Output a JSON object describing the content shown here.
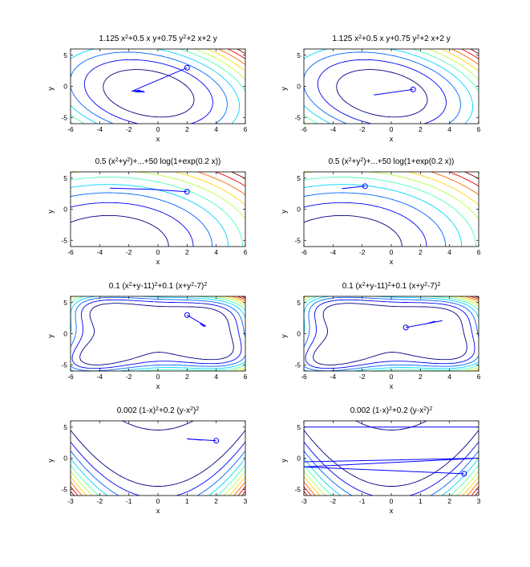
{
  "figure": {
    "background": "#ffffff"
  },
  "chart_data": [
    {
      "type": "contour",
      "function": "quad",
      "title_html": "1.125 x<tspan baseline-shift=\"super\" font-size=\"7\">2</tspan>+0.5 x y+0.75 y<tspan baseline-shift=\"super\" font-size=\"7\">2</tspan>+2 x+2 y",
      "xlabel": "x",
      "ylabel": "y",
      "xlim": [
        -6,
        6
      ],
      "ylim": [
        -6,
        6
      ],
      "xticks": [
        -6,
        -4,
        -2,
        0,
        2,
        4,
        6
      ],
      "yticks": [
        -5,
        0,
        5
      ],
      "path": [
        [
          2,
          3
        ],
        [
          -1.8,
          -0.8
        ],
        [
          -1.2,
          -0.6
        ],
        [
          -1.5,
          -0.9
        ],
        [
          -0.9,
          -0.9
        ],
        [
          -1.6,
          -0.85
        ],
        [
          -1.0,
          -0.75
        ]
      ],
      "start": [
        2,
        3
      ]
    },
    {
      "type": "contour",
      "function": "quad",
      "title_html": "1.125 x<tspan baseline-shift=\"super\" font-size=\"7\">2</tspan>+0.5 x y+0.75 y<tspan baseline-shift=\"super\" font-size=\"7\">2</tspan>+2 x+2 y",
      "xlabel": "x",
      "ylabel": "y",
      "xlim": [
        -6,
        6
      ],
      "ylim": [
        -6,
        6
      ],
      "xticks": [
        -6,
        -4,
        -2,
        0,
        2,
        4,
        6
      ],
      "yticks": [
        -5,
        0,
        5
      ],
      "path": [
        [
          1.5,
          -0.5
        ],
        [
          -1.2,
          -1.4
        ],
        [
          -0.6,
          -1.2
        ]
      ],
      "start": [
        1.5,
        -0.5
      ]
    },
    {
      "type": "contour",
      "function": "log",
      "title_html": "0.5 (x<tspan baseline-shift=\"super\" font-size=\"7\">2</tspan>+y<tspan baseline-shift=\"super\" font-size=\"7\">2</tspan>)+...+50 log(1+exp(0.2 x))",
      "xlabel": "x",
      "ylabel": "y",
      "xlim": [
        -6,
        6
      ],
      "ylim": [
        -6,
        6
      ],
      "xticks": [
        -6,
        -4,
        -2,
        0,
        2,
        4,
        6
      ],
      "yticks": [
        -5,
        0,
        5
      ],
      "path": [
        [
          2,
          2.8
        ],
        [
          -0.5,
          3.2
        ],
        [
          -3.3,
          3.4
        ]
      ],
      "start": [
        2,
        2.8
      ]
    },
    {
      "type": "contour",
      "function": "log",
      "title_html": "0.5 (x<tspan baseline-shift=\"super\" font-size=\"7\">2</tspan>+y<tspan baseline-shift=\"super\" font-size=\"7\">2</tspan>)+...+50 log(1+exp(0.2 x))",
      "xlabel": "x",
      "ylabel": "y",
      "xlim": [
        -6,
        6
      ],
      "ylim": [
        -6,
        6
      ],
      "xticks": [
        -6,
        -4,
        -2,
        0,
        2,
        4,
        6
      ],
      "yticks": [
        -5,
        0,
        5
      ],
      "path": [
        [
          -1.8,
          3.7
        ],
        [
          -3.4,
          3.3
        ],
        [
          -2.6,
          3.5
        ]
      ],
      "start": [
        -1.8,
        3.7
      ]
    },
    {
      "type": "contour",
      "function": "himmel",
      "title_html": "0.1 (x<tspan baseline-shift=\"super\" font-size=\"7\">2</tspan>+y-11)<tspan baseline-shift=\"super\" font-size=\"7\">2</tspan>+0.1 (x+y<tspan baseline-shift=\"super\" font-size=\"7\">2</tspan>-7)<tspan baseline-shift=\"super\" font-size=\"7\">2</tspan>",
      "xlabel": "x",
      "ylabel": "y",
      "xlim": [
        -6,
        6
      ],
      "ylim": [
        -6,
        6
      ],
      "xticks": [
        -6,
        -4,
        -2,
        0,
        2,
        4,
        6
      ],
      "yticks": [
        -5,
        0,
        5
      ],
      "path": [
        [
          2,
          3
        ],
        [
          3.3,
          1.2
        ],
        [
          2.9,
          1.6
        ],
        [
          3.2,
          1.1
        ]
      ],
      "start": [
        2,
        3
      ]
    },
    {
      "type": "contour",
      "function": "himmel",
      "title_html": "0.1 (x<tspan baseline-shift=\"super\" font-size=\"7\">2</tspan>+y-11)<tspan baseline-shift=\"super\" font-size=\"7\">2</tspan>+0.1 (x+y<tspan baseline-shift=\"super\" font-size=\"7\">2</tspan>-7)<tspan baseline-shift=\"super\" font-size=\"7\">2</tspan>",
      "xlabel": "x",
      "ylabel": "y",
      "xlim": [
        -6,
        6
      ],
      "ylim": [
        -6,
        6
      ],
      "xticks": [
        -6,
        -4,
        -2,
        0,
        2,
        4,
        6
      ],
      "yticks": [
        -5,
        0,
        5
      ],
      "path": [
        [
          1,
          1
        ],
        [
          3.5,
          2.1
        ],
        [
          2.4,
          1.6
        ],
        [
          3.0,
          2.0
        ],
        [
          2.7,
          1.7
        ]
      ],
      "start": [
        1,
        1
      ]
    },
    {
      "type": "contour",
      "function": "rosen",
      "title_html": "0.002 (1-x)<tspan baseline-shift=\"super\" font-size=\"7\">2</tspan>+0.2 (y-x<tspan baseline-shift=\"super\" font-size=\"7\">2</tspan>)<tspan baseline-shift=\"super\" font-size=\"7\">2</tspan>",
      "xlabel": "x",
      "ylabel": "y",
      "xlim": [
        -3,
        3
      ],
      "ylim": [
        -6,
        6
      ],
      "xticks": [
        -3,
        -2,
        -1,
        0,
        1,
        2,
        3
      ],
      "yticks": [
        -5,
        0,
        5
      ],
      "path": [
        [
          2,
          2.8
        ],
        [
          1.0,
          3.1
        ],
        [
          1.5,
          2.9
        ]
      ],
      "start": [
        2,
        2.8
      ]
    },
    {
      "type": "contour",
      "function": "rosen",
      "title_html": "0.002 (1-x)<tspan baseline-shift=\"super\" font-size=\"7\">2</tspan>+0.2 (y-x<tspan baseline-shift=\"super\" font-size=\"7\">2</tspan>)<tspan baseline-shift=\"super\" font-size=\"7\">2</tspan>",
      "xlabel": "x",
      "ylabel": "y",
      "xlim": [
        -3,
        3
      ],
      "ylim": [
        -6,
        6
      ],
      "xticks": [
        -3,
        -2,
        -1,
        0,
        1,
        2,
        3
      ],
      "yticks": [
        -5,
        0,
        5
      ],
      "path": [
        [
          2.5,
          -2.5
        ],
        [
          -3,
          -1.4
        ],
        [
          3,
          0
        ],
        [
          -3,
          -0.6
        ],
        [
          -3,
          5
        ],
        [
          3,
          5
        ]
      ],
      "start": [
        2.5,
        -2.5
      ]
    }
  ]
}
